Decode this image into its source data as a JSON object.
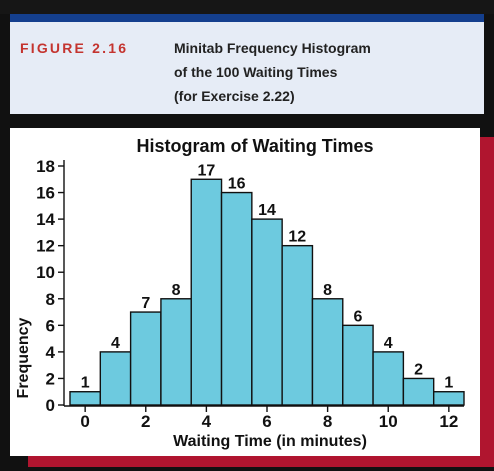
{
  "figure": {
    "label": "FIGURE 2.16",
    "caption_lines": [
      "Minitab Frequency Histogram",
      "of the 100 Waiting Times",
      "(for Exercise 2.22)"
    ]
  },
  "colors": {
    "bar_fill": "#6dcadf",
    "bar_stroke": "#111111",
    "figure_label": "#c4342f",
    "rule": "#143f8e",
    "caption_bg": "#e6ecf6",
    "frame_shadow": "#b0152f"
  },
  "chart_data": {
    "type": "bar",
    "title": "Histogram of Waiting Times",
    "xlabel": "Waiting Time (in minutes)",
    "ylabel": "Frequency",
    "x": [
      0,
      1,
      2,
      3,
      4,
      5,
      6,
      7,
      8,
      9,
      10,
      11,
      12
    ],
    "values": [
      1,
      4,
      7,
      8,
      17,
      16,
      14,
      12,
      8,
      6,
      4,
      2,
      1
    ],
    "xticks": [
      0,
      2,
      4,
      6,
      8,
      10,
      12
    ],
    "yticks": [
      0,
      2,
      4,
      6,
      8,
      10,
      12,
      14,
      16,
      18
    ],
    "xlim": [
      -0.5,
      12.5
    ],
    "ylim": [
      0,
      18
    ],
    "data_labels": true,
    "grid": false,
    "legend": "none"
  }
}
